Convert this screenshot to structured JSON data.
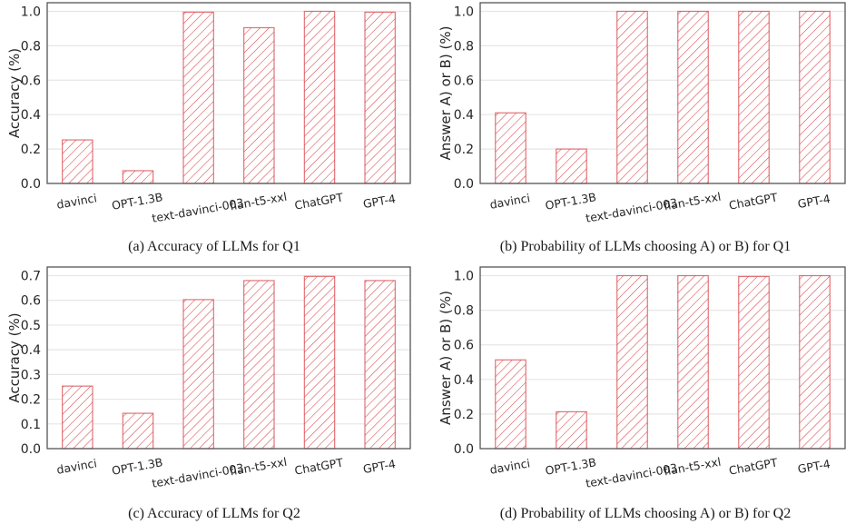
{
  "figure": {
    "bar_color": "#d9444a",
    "hatch": "diagonal"
  },
  "chart_data": [
    {
      "id": "a",
      "type": "bar",
      "title": "",
      "caption": "(a) Accuracy of LLMs for Q1",
      "xlabel": "",
      "ylabel": "Accuracy (%)",
      "categories": [
        "davinci",
        "OPT-1.3B",
        "text-davinci-003",
        "flan-t5-xxl",
        "ChatGPT",
        "GPT-4"
      ],
      "values": [
        0.253,
        0.074,
        0.995,
        0.905,
        1.0,
        0.995
      ],
      "ylim": [
        0,
        1.05
      ],
      "yticks": [
        0.0,
        0.2,
        0.4,
        0.6,
        0.8,
        1.0
      ],
      "ytick_labels": [
        "0.0",
        "0.2",
        "0.4",
        "0.6",
        "0.8",
        "1.0"
      ],
      "grid": true,
      "legend": "none"
    },
    {
      "id": "b",
      "type": "bar",
      "title": "",
      "caption": "(b) Probability of LLMs choosing A) or B) for Q1",
      "xlabel": "",
      "ylabel": "Answer A) or B) (%)",
      "categories": [
        "davinci",
        "OPT-1.3B",
        "text-davinci-003",
        "flan-t5-xxl",
        "ChatGPT",
        "GPT-4"
      ],
      "values": [
        0.41,
        0.2,
        1.0,
        1.0,
        1.0,
        1.0
      ],
      "ylim": [
        0,
        1.05
      ],
      "yticks": [
        0.0,
        0.2,
        0.4,
        0.6,
        0.8,
        1.0
      ],
      "ytick_labels": [
        "0.0",
        "0.2",
        "0.4",
        "0.6",
        "0.8",
        "1.0"
      ],
      "grid": true,
      "legend": "none"
    },
    {
      "id": "c",
      "type": "bar",
      "title": "",
      "caption": "(c) Accuracy of LLMs for Q2",
      "xlabel": "",
      "ylabel": "Accuracy (%)",
      "categories": [
        "davinci",
        "OPT-1.3B",
        "text-davinci-003",
        "flan-t5-xxl",
        "ChatGPT",
        "GPT-4"
      ],
      "values": [
        0.253,
        0.143,
        0.603,
        0.68,
        0.697,
        0.68
      ],
      "ylim": [
        0,
        0.735
      ],
      "yticks": [
        0.0,
        0.1,
        0.2,
        0.3,
        0.4,
        0.5,
        0.6,
        0.7
      ],
      "ytick_labels": [
        "0.0",
        "0.1",
        "0.2",
        "0.3",
        "0.4",
        "0.5",
        "0.6",
        "0.7"
      ],
      "grid": true,
      "legend": "none"
    },
    {
      "id": "d",
      "type": "bar",
      "title": "",
      "caption": "(d) Probability of LLMs choosing A) or B) for Q2",
      "xlabel": "",
      "ylabel": "Answer A) or B) (%)",
      "categories": [
        "davinci",
        "OPT-1.3B",
        "text-davinci-003",
        "flan-t5-xxl",
        "ChatGPT",
        "GPT-4"
      ],
      "values": [
        0.513,
        0.213,
        1.0,
        1.0,
        0.995,
        1.0
      ],
      "ylim": [
        0,
        1.05
      ],
      "yticks": [
        0.0,
        0.2,
        0.4,
        0.6,
        0.8,
        1.0
      ],
      "ytick_labels": [
        "0.0",
        "0.2",
        "0.4",
        "0.6",
        "0.8",
        "1.0"
      ],
      "grid": true,
      "legend": "none"
    }
  ]
}
